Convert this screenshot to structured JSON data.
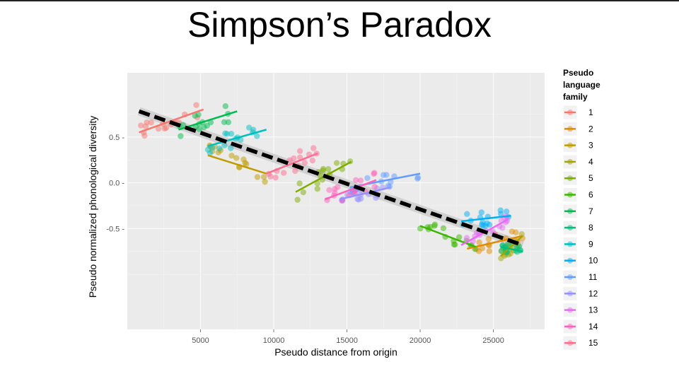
{
  "slide": {
    "title": "Simpson’s Paradox"
  },
  "chart_data": {
    "type": "scatter",
    "title": "",
    "xlabel": "Pseudo distance from origin",
    "ylabel": "Pseudo normalized phonological diversity",
    "xlim": [
      0,
      28500
    ],
    "ylim": [
      -1.6,
      1.2
    ],
    "x_ticks": [
      5000,
      10000,
      15000,
      20000,
      25000
    ],
    "x_tick_labels": [
      "5000",
      "10000",
      "15000",
      "20000",
      "25000"
    ],
    "y_ticks": [
      0.5,
      0.0,
      -0.5
    ],
    "y_tick_labels": [
      "0.5 -",
      "0.0 -",
      "-0.5 -"
    ],
    "grid": true,
    "background": "#ebebeb",
    "legend": {
      "title_lines": [
        "Pseudo",
        "language",
        "family"
      ],
      "placement": "right"
    },
    "overall_trend": {
      "x": [
        800,
        27000
      ],
      "y": [
        0.78,
        -0.68
      ],
      "style": "dashed",
      "color": "#000000"
    },
    "overall_ribbon_color": "#cccccc",
    "series": [
      {
        "name": "1",
        "color": "#F8766D",
        "x_range": [
          800,
          5200
        ],
        "fit": [
          0.55,
          0.8
        ],
        "spread": 0.09
      },
      {
        "name": "2",
        "color": "#E08B00",
        "x_range": [
          23200,
          27000
        ],
        "fit": [
          -0.72,
          -0.58
        ],
        "spread": 0.09
      },
      {
        "name": "3",
        "color": "#C09B00",
        "x_range": [
          5500,
          9500
        ],
        "fit": [
          0.3,
          0.1
        ],
        "spread": 0.12
      },
      {
        "name": "4",
        "color": "#A3A500",
        "x_range": [
          25500,
          27000
        ],
        "fit": [
          -0.8,
          -0.58
        ],
        "spread": 0.07
      },
      {
        "name": "5",
        "color": "#7CAE00",
        "x_range": [
          11500,
          15300
        ],
        "fit": [
          -0.1,
          0.23
        ],
        "spread": 0.1
      },
      {
        "name": "6",
        "color": "#39B600",
        "x_range": [
          20000,
          23800
        ],
        "fit": [
          -0.47,
          -0.7
        ],
        "spread": 0.08
      },
      {
        "name": "7",
        "color": "#00BB4E",
        "x_range": [
          3500,
          7500
        ],
        "fit": [
          0.58,
          0.78
        ],
        "spread": 0.1
      },
      {
        "name": "8",
        "color": "#00BF7D",
        "x_range": [
          25500,
          27000
        ],
        "fit": [
          -0.7,
          -0.75
        ],
        "spread": 0.06
      },
      {
        "name": "9",
        "color": "#00BFC4",
        "x_range": [
          5500,
          9500
        ],
        "fit": [
          0.4,
          0.58
        ],
        "spread": 0.1
      },
      {
        "name": "10",
        "color": "#00B0F6",
        "x_range": [
          22800,
          26200
        ],
        "fit": [
          -0.42,
          -0.36
        ],
        "spread": 0.08
      },
      {
        "name": "11",
        "color": "#619CFF",
        "x_range": [
          15200,
          20000
        ],
        "fit": [
          -0.05,
          0.1
        ],
        "spread": 0.08
      },
      {
        "name": "12",
        "color": "#9590FF",
        "x_range": [
          14500,
          18000
        ],
        "fit": [
          -0.18,
          -0.05
        ],
        "spread": 0.08
      },
      {
        "name": "13",
        "color": "#E76BF3",
        "x_range": [
          22800,
          26000
        ],
        "fit": [
          -0.68,
          -0.4
        ],
        "spread": 0.09
      },
      {
        "name": "14",
        "color": "#FF62BC",
        "x_range": [
          13500,
          17000
        ],
        "fit": [
          -0.18,
          0.03
        ],
        "spread": 0.09
      },
      {
        "name": "15",
        "color": "#FF6C91",
        "x_range": [
          9500,
          13000
        ],
        "fit": [
          0.1,
          0.32
        ],
        "spread": 0.11
      }
    ]
  }
}
